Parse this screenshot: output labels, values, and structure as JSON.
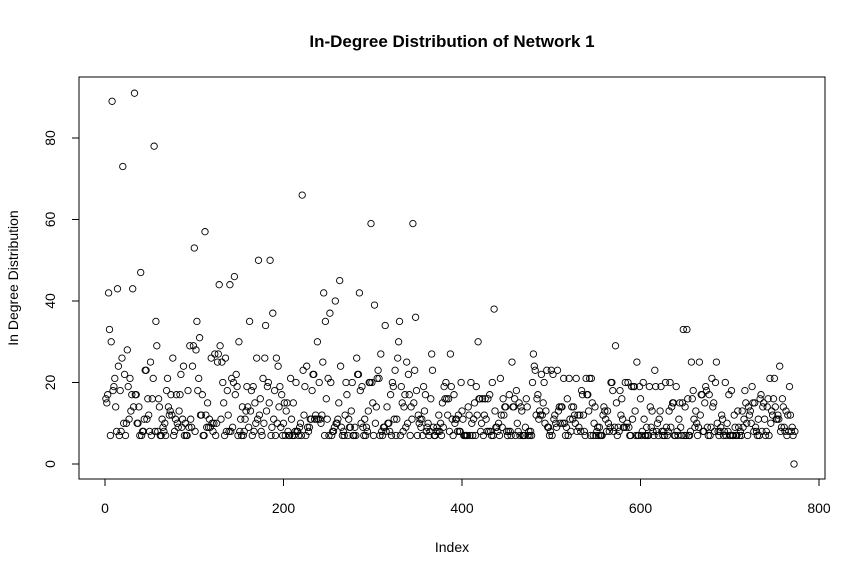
{
  "chart_data": {
    "type": "scatter",
    "title": "In-Degree Distribution of Network 1",
    "xlabel": "Index",
    "ylabel": "In Degree Distribution",
    "xlim": [
      0,
      800
    ],
    "ylim": [
      0,
      92
    ],
    "x_ticks": [
      0,
      200,
      400,
      600,
      800
    ],
    "y_ticks": [
      0,
      20,
      40,
      60,
      80
    ],
    "x_tick_labels": [
      "0",
      "200",
      "400",
      "600",
      "800"
    ],
    "y_tick_labels": [
      "0",
      "20",
      "40",
      "60",
      "80"
    ],
    "marker": "open-circle",
    "grid": false,
    "legend": "none",
    "n_points": 773,
    "outliers": [
      {
        "x": 4,
        "y": 42
      },
      {
        "x": 5,
        "y": 33
      },
      {
        "x": 7,
        "y": 30
      },
      {
        "x": 8,
        "y": 89
      },
      {
        "x": 14,
        "y": 43
      },
      {
        "x": 20,
        "y": 73
      },
      {
        "x": 31,
        "y": 43
      },
      {
        "x": 33,
        "y": 91
      },
      {
        "x": 40,
        "y": 47
      },
      {
        "x": 55,
        "y": 78
      },
      {
        "x": 57,
        "y": 35
      },
      {
        "x": 95,
        "y": 29
      },
      {
        "x": 100,
        "y": 53
      },
      {
        "x": 103,
        "y": 35
      },
      {
        "x": 106,
        "y": 31
      },
      {
        "x": 112,
        "y": 57
      },
      {
        "x": 128,
        "y": 44
      },
      {
        "x": 140,
        "y": 44
      },
      {
        "x": 145,
        "y": 46
      },
      {
        "x": 150,
        "y": 30
      },
      {
        "x": 162,
        "y": 35
      },
      {
        "x": 172,
        "y": 50
      },
      {
        "x": 180,
        "y": 34
      },
      {
        "x": 185,
        "y": 50
      },
      {
        "x": 188,
        "y": 37
      },
      {
        "x": 221,
        "y": 66
      },
      {
        "x": 238,
        "y": 30
      },
      {
        "x": 245,
        "y": 42
      },
      {
        "x": 247,
        "y": 35
      },
      {
        "x": 252,
        "y": 37
      },
      {
        "x": 258,
        "y": 40
      },
      {
        "x": 263,
        "y": 45
      },
      {
        "x": 285,
        "y": 42
      },
      {
        "x": 298,
        "y": 59
      },
      {
        "x": 302,
        "y": 39
      },
      {
        "x": 314,
        "y": 34
      },
      {
        "x": 330,
        "y": 35
      },
      {
        "x": 345,
        "y": 59
      },
      {
        "x": 348,
        "y": 36
      },
      {
        "x": 436,
        "y": 38
      }
    ]
  }
}
